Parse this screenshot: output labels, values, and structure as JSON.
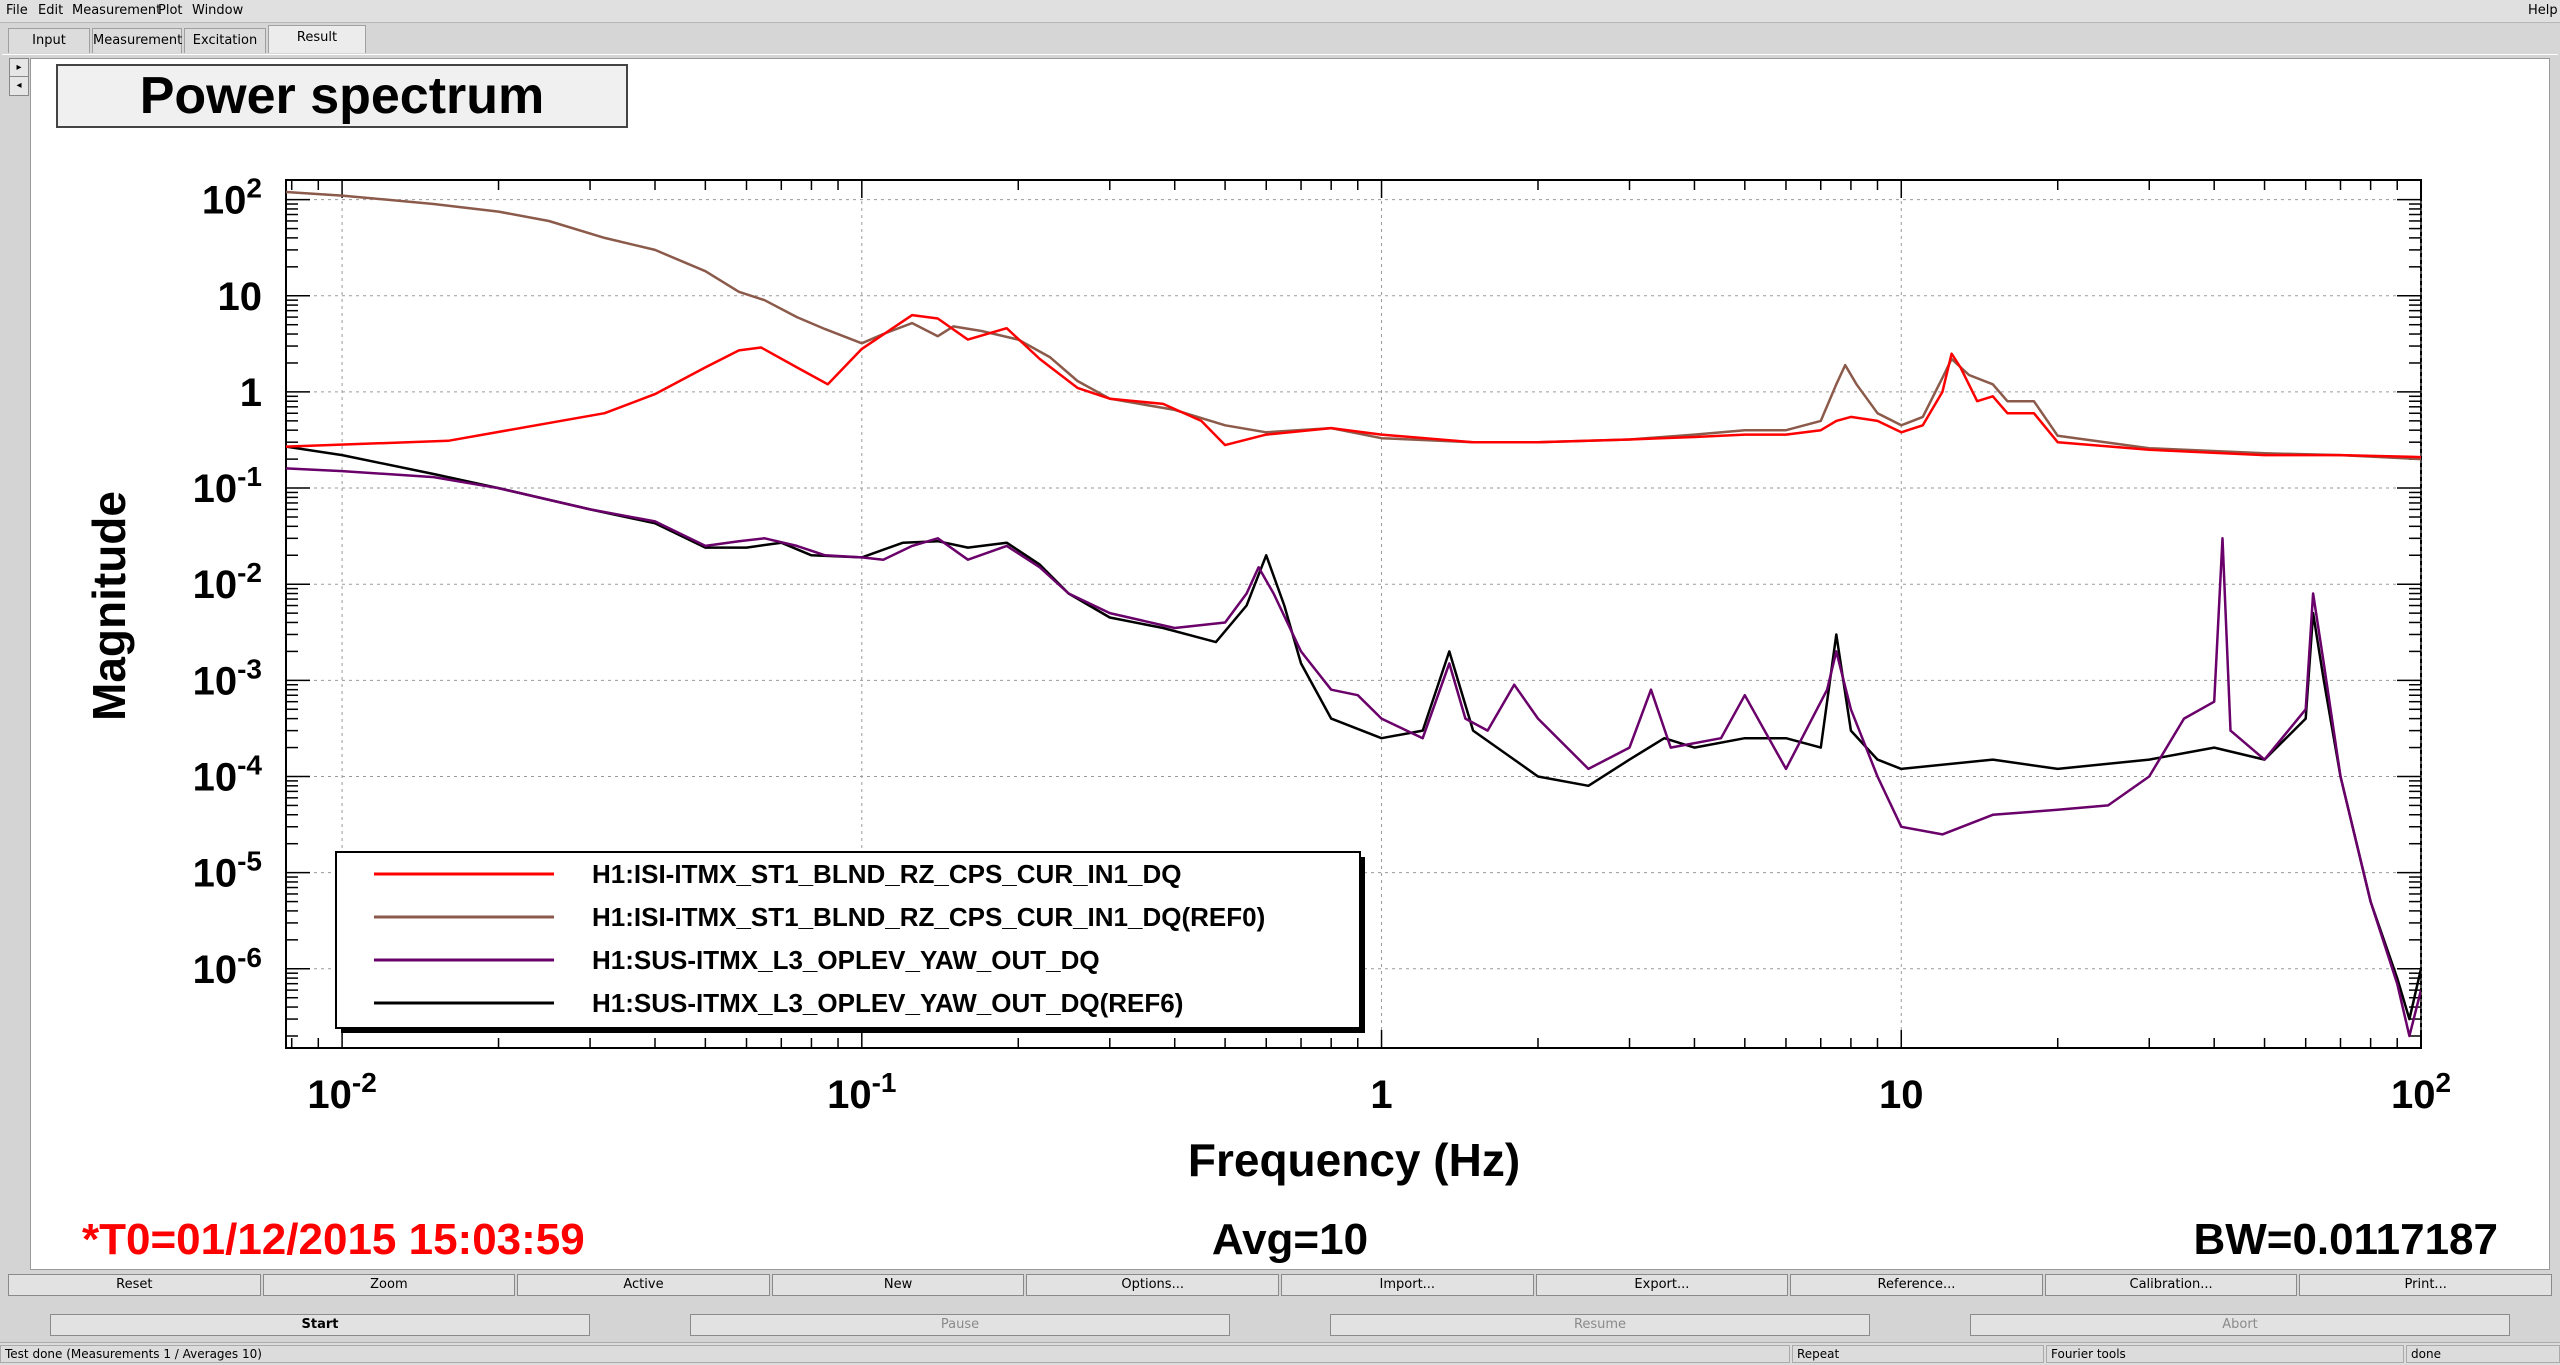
{
  "menu": {
    "items": [
      "File",
      "Edit",
      "Measurement",
      "Plot",
      "Window"
    ],
    "help": "Help"
  },
  "tabs": [
    "Input",
    "Measurement",
    "Excitation",
    "Result"
  ],
  "active_tab": "Result",
  "plot": {
    "title": "Power spectrum",
    "info_left": "*T0=01/12/2015 15:03:59",
    "info_center": "Avg=10",
    "info_right": "BW=0.0117187",
    "info_left_color": "#ff0000"
  },
  "chart_data": {
    "type": "line",
    "title": "Power spectrum",
    "xlabel": "Frequency (Hz)",
    "ylabel": "Magnitude",
    "xscale": "log",
    "yscale": "log",
    "xlim": [
      0.0078,
      100
    ],
    "ylim": [
      1.5e-07,
      160
    ],
    "grid": true,
    "legend_position": "bottom-left",
    "x_ticks": [
      {
        "value": 0.01,
        "base": "10",
        "exp": "-2"
      },
      {
        "value": 0.1,
        "base": "10",
        "exp": "-1"
      },
      {
        "value": 1,
        "base": "1",
        "exp": ""
      },
      {
        "value": 10,
        "base": "10",
        "exp": ""
      },
      {
        "value": 100,
        "base": "10",
        "exp": "2"
      }
    ],
    "y_ticks": [
      {
        "value": 100,
        "base": "10",
        "exp": "2"
      },
      {
        "value": 10,
        "base": "10",
        "exp": ""
      },
      {
        "value": 1,
        "base": "1",
        "exp": ""
      },
      {
        "value": 0.1,
        "base": "10",
        "exp": "-1"
      },
      {
        "value": 0.01,
        "base": "10",
        "exp": "-2"
      },
      {
        "value": 0.001,
        "base": "10",
        "exp": "-3"
      },
      {
        "value": 0.0001,
        "base": "10",
        "exp": "-4"
      },
      {
        "value": 1e-05,
        "base": "10",
        "exp": "-5"
      },
      {
        "value": 1e-06,
        "base": "10",
        "exp": "-6"
      }
    ],
    "series": [
      {
        "name": "H1:ISI-ITMX_ST1_BLND_RZ_CPS_CUR_IN1_DQ",
        "color": "#ff0000",
        "points": [
          [
            0.0078,
            0.27
          ],
          [
            0.016,
            0.31
          ],
          [
            0.032,
            0.6
          ],
          [
            0.04,
            0.95
          ],
          [
            0.05,
            1.8
          ],
          [
            0.058,
            2.7
          ],
          [
            0.064,
            2.9
          ],
          [
            0.075,
            1.8
          ],
          [
            0.086,
            1.2
          ],
          [
            0.1,
            2.8
          ],
          [
            0.125,
            6.3
          ],
          [
            0.14,
            5.8
          ],
          [
            0.16,
            3.5
          ],
          [
            0.19,
            4.6
          ],
          [
            0.22,
            2.2
          ],
          [
            0.26,
            1.1
          ],
          [
            0.3,
            0.85
          ],
          [
            0.38,
            0.75
          ],
          [
            0.45,
            0.5
          ],
          [
            0.5,
            0.28
          ],
          [
            0.6,
            0.36
          ],
          [
            0.8,
            0.42
          ],
          [
            1.0,
            0.36
          ],
          [
            1.5,
            0.3
          ],
          [
            2.0,
            0.3
          ],
          [
            3.0,
            0.32
          ],
          [
            4.0,
            0.34
          ],
          [
            5.0,
            0.36
          ],
          [
            6.0,
            0.36
          ],
          [
            7.0,
            0.4
          ],
          [
            7.5,
            0.5
          ],
          [
            8.0,
            0.55
          ],
          [
            9.0,
            0.5
          ],
          [
            10.0,
            0.38
          ],
          [
            11.0,
            0.45
          ],
          [
            12.0,
            1.0
          ],
          [
            12.5,
            2.5
          ],
          [
            13.0,
            1.8
          ],
          [
            14.0,
            0.8
          ],
          [
            15.0,
            0.9
          ],
          [
            16.0,
            0.6
          ],
          [
            18.0,
            0.6
          ],
          [
            20.0,
            0.3
          ],
          [
            30.0,
            0.25
          ],
          [
            50.0,
            0.22
          ],
          [
            70.0,
            0.22
          ],
          [
            100.0,
            0.21
          ]
        ]
      },
      {
        "name": "H1:ISI-ITMX_ST1_BLND_RZ_CPS_CUR_IN1_DQ(REF0)",
        "color": "#8b5a4a",
        "points": [
          [
            0.0078,
            120
          ],
          [
            0.01,
            110
          ],
          [
            0.015,
            90
          ],
          [
            0.02,
            75
          ],
          [
            0.025,
            60
          ],
          [
            0.032,
            40
          ],
          [
            0.04,
            30
          ],
          [
            0.05,
            18
          ],
          [
            0.058,
            11
          ],
          [
            0.065,
            9
          ],
          [
            0.075,
            6
          ],
          [
            0.085,
            4.5
          ],
          [
            0.1,
            3.2
          ],
          [
            0.11,
            4.0
          ],
          [
            0.125,
            5.2
          ],
          [
            0.14,
            3.8
          ],
          [
            0.15,
            4.8
          ],
          [
            0.17,
            4.3
          ],
          [
            0.2,
            3.5
          ],
          [
            0.23,
            2.3
          ],
          [
            0.26,
            1.3
          ],
          [
            0.3,
            0.85
          ],
          [
            0.4,
            0.65
          ],
          [
            0.5,
            0.45
          ],
          [
            0.6,
            0.38
          ],
          [
            0.8,
            0.42
          ],
          [
            1.0,
            0.33
          ],
          [
            1.5,
            0.3
          ],
          [
            2.0,
            0.3
          ],
          [
            3.0,
            0.32
          ],
          [
            4.0,
            0.36
          ],
          [
            5.0,
            0.4
          ],
          [
            6.0,
            0.4
          ],
          [
            7.0,
            0.5
          ],
          [
            7.5,
            1.2
          ],
          [
            7.8,
            1.9
          ],
          [
            8.2,
            1.2
          ],
          [
            9.0,
            0.6
          ],
          [
            10.0,
            0.45
          ],
          [
            11.0,
            0.55
          ],
          [
            12.0,
            1.4
          ],
          [
            12.5,
            2.2
          ],
          [
            13.5,
            1.5
          ],
          [
            15.0,
            1.2
          ],
          [
            16.0,
            0.8
          ],
          [
            18.0,
            0.8
          ],
          [
            20.0,
            0.35
          ],
          [
            30.0,
            0.26
          ],
          [
            50.0,
            0.23
          ],
          [
            70.0,
            0.22
          ],
          [
            100.0,
            0.2
          ]
        ]
      },
      {
        "name": "H1:SUS-ITMX_L3_OPLEV_YAW_OUT_DQ",
        "color": "#6a006a",
        "points": [
          [
            0.0078,
            0.16
          ],
          [
            0.01,
            0.15
          ],
          [
            0.015,
            0.13
          ],
          [
            0.02,
            0.1
          ],
          [
            0.03,
            0.06
          ],
          [
            0.04,
            0.045
          ],
          [
            0.05,
            0.025
          ],
          [
            0.058,
            0.028
          ],
          [
            0.065,
            0.03
          ],
          [
            0.075,
            0.025
          ],
          [
            0.085,
            0.02
          ],
          [
            0.1,
            0.019
          ],
          [
            0.11,
            0.018
          ],
          [
            0.125,
            0.025
          ],
          [
            0.14,
            0.03
          ],
          [
            0.16,
            0.018
          ],
          [
            0.19,
            0.025
          ],
          [
            0.22,
            0.015
          ],
          [
            0.25,
            0.008
          ],
          [
            0.3,
            0.005
          ],
          [
            0.4,
            0.0035
          ],
          [
            0.5,
            0.004
          ],
          [
            0.55,
            0.008
          ],
          [
            0.58,
            0.015
          ],
          [
            0.62,
            0.008
          ],
          [
            0.7,
            0.002
          ],
          [
            0.8,
            0.0008
          ],
          [
            0.9,
            0.0007
          ],
          [
            1.0,
            0.0004
          ],
          [
            1.2,
            0.00025
          ],
          [
            1.35,
            0.0015
          ],
          [
            1.45,
            0.0004
          ],
          [
            1.6,
            0.0003
          ],
          [
            1.8,
            0.0009
          ],
          [
            2.0,
            0.0004
          ],
          [
            2.5,
            0.00012
          ],
          [
            3.0,
            0.0002
          ],
          [
            3.3,
            0.0008
          ],
          [
            3.6,
            0.0002
          ],
          [
            4.5,
            0.00025
          ],
          [
            5.0,
            0.0007
          ],
          [
            6.0,
            0.00012
          ],
          [
            7.2,
            0.0008
          ],
          [
            7.5,
            0.002
          ],
          [
            8.0,
            0.0005
          ],
          [
            9.0,
            0.0001
          ],
          [
            10.0,
            3e-05
          ],
          [
            12.0,
            2.5e-05
          ],
          [
            15.0,
            4e-05
          ],
          [
            20.0,
            4.5e-05
          ],
          [
            25.0,
            5e-05
          ],
          [
            30.0,
            0.0001
          ],
          [
            35.0,
            0.0004
          ],
          [
            40.0,
            0.0006
          ],
          [
            41.5,
            0.03
          ],
          [
            43.0,
            0.0003
          ],
          [
            50.0,
            0.00015
          ],
          [
            60.0,
            0.0005
          ],
          [
            62.0,
            0.008
          ],
          [
            65.0,
            0.0015
          ],
          [
            70.0,
            0.0001
          ],
          [
            80.0,
            5e-06
          ],
          [
            90.0,
            7e-07
          ],
          [
            95.0,
            2e-07
          ],
          [
            100.0,
            6e-07
          ]
        ]
      },
      {
        "name": "H1:SUS-ITMX_L3_OPLEV_YAW_OUT_DQ(REF6)",
        "color": "#000000",
        "points": [
          [
            0.0078,
            0.27
          ],
          [
            0.01,
            0.22
          ],
          [
            0.015,
            0.14
          ],
          [
            0.02,
            0.1
          ],
          [
            0.03,
            0.06
          ],
          [
            0.04,
            0.043
          ],
          [
            0.05,
            0.024
          ],
          [
            0.06,
            0.024
          ],
          [
            0.07,
            0.027
          ],
          [
            0.08,
            0.02
          ],
          [
            0.1,
            0.019
          ],
          [
            0.12,
            0.027
          ],
          [
            0.14,
            0.028
          ],
          [
            0.16,
            0.024
          ],
          [
            0.19,
            0.027
          ],
          [
            0.22,
            0.016
          ],
          [
            0.25,
            0.008
          ],
          [
            0.3,
            0.0045
          ],
          [
            0.38,
            0.0035
          ],
          [
            0.48,
            0.0025
          ],
          [
            0.55,
            0.006
          ],
          [
            0.6,
            0.02
          ],
          [
            0.65,
            0.006
          ],
          [
            0.7,
            0.0015
          ],
          [
            0.8,
            0.0004
          ],
          [
            1.0,
            0.00025
          ],
          [
            1.2,
            0.0003
          ],
          [
            1.35,
            0.002
          ],
          [
            1.5,
            0.0003
          ],
          [
            1.8,
            0.00015
          ],
          [
            2.0,
            0.0001
          ],
          [
            2.5,
            8e-05
          ],
          [
            3.0,
            0.00015
          ],
          [
            3.5,
            0.00025
          ],
          [
            4.0,
            0.0002
          ],
          [
            5.0,
            0.00025
          ],
          [
            6.0,
            0.00025
          ],
          [
            7.0,
            0.0002
          ],
          [
            7.5,
            0.003
          ],
          [
            8.0,
            0.0003
          ],
          [
            9.0,
            0.00015
          ],
          [
            10.0,
            0.00012
          ],
          [
            15.0,
            0.00015
          ],
          [
            20.0,
            0.00012
          ],
          [
            30.0,
            0.00015
          ],
          [
            40.0,
            0.0002
          ],
          [
            50.0,
            0.00015
          ],
          [
            60.0,
            0.0004
          ],
          [
            62.0,
            0.005
          ],
          [
            65.0,
            0.001
          ],
          [
            70.0,
            0.0001
          ],
          [
            80.0,
            5e-06
          ],
          [
            90.0,
            8e-07
          ],
          [
            95.0,
            3e-07
          ],
          [
            100.0,
            1e-06
          ]
        ]
      }
    ]
  },
  "buttons_row1": [
    "Reset",
    "Zoom",
    "Active",
    "New",
    "Options...",
    "Import...",
    "Export...",
    "Reference...",
    "Calibration...",
    "Print..."
  ],
  "buttons_row2": [
    {
      "label": "Start",
      "enabled": true
    },
    {
      "label": "Pause",
      "enabled": false
    },
    {
      "label": "Resume",
      "enabled": false
    },
    {
      "label": "Abort",
      "enabled": false
    }
  ],
  "status": {
    "message": "Test done (Measurements 1 / Averages 10)",
    "repeat": "Repeat",
    "tools": "Fourier tools",
    "state": "done"
  }
}
